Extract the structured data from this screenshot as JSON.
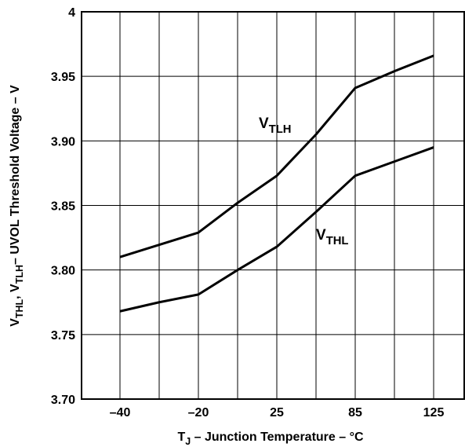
{
  "chart_data": {
    "type": "line",
    "categories": [
      "–40",
      "–20",
      "25",
      "85",
      "125"
    ],
    "y_ticks": [
      "3.70",
      "3.75",
      "3.80",
      "3.85",
      "3.90",
      "3.95",
      "4"
    ],
    "ylim": [
      3.7,
      4.0
    ],
    "grid": true,
    "xlabel": {
      "prefix": "T",
      "sub": "J",
      "rest": " – Junction Temperature – °C"
    },
    "ylabel": {
      "v1": "V",
      "s1": "THL",
      "sep": ", V",
      "s2": "TLH",
      "rest": "– UVOL Threshold Voltage – V"
    },
    "series": [
      {
        "name_main": "V",
        "name_sub": "TLH",
        "points": [
          [
            0,
            3.81
          ],
          [
            1,
            3.829
          ],
          [
            1.5,
            3.852
          ],
          [
            2,
            3.873
          ],
          [
            2.5,
            3.905
          ],
          [
            3,
            3.941
          ],
          [
            3.5,
            3.954
          ],
          [
            4,
            3.966
          ]
        ]
      },
      {
        "name_main": "V",
        "name_sub": "THL",
        "points": [
          [
            0,
            3.768
          ],
          [
            0.5,
            3.775
          ],
          [
            1,
            3.781
          ],
          [
            1.5,
            3.8
          ],
          [
            2,
            3.818
          ],
          [
            2.5,
            3.845
          ],
          [
            3,
            3.873
          ],
          [
            3.5,
            3.884
          ],
          [
            4,
            3.895
          ]
        ]
      }
    ]
  }
}
